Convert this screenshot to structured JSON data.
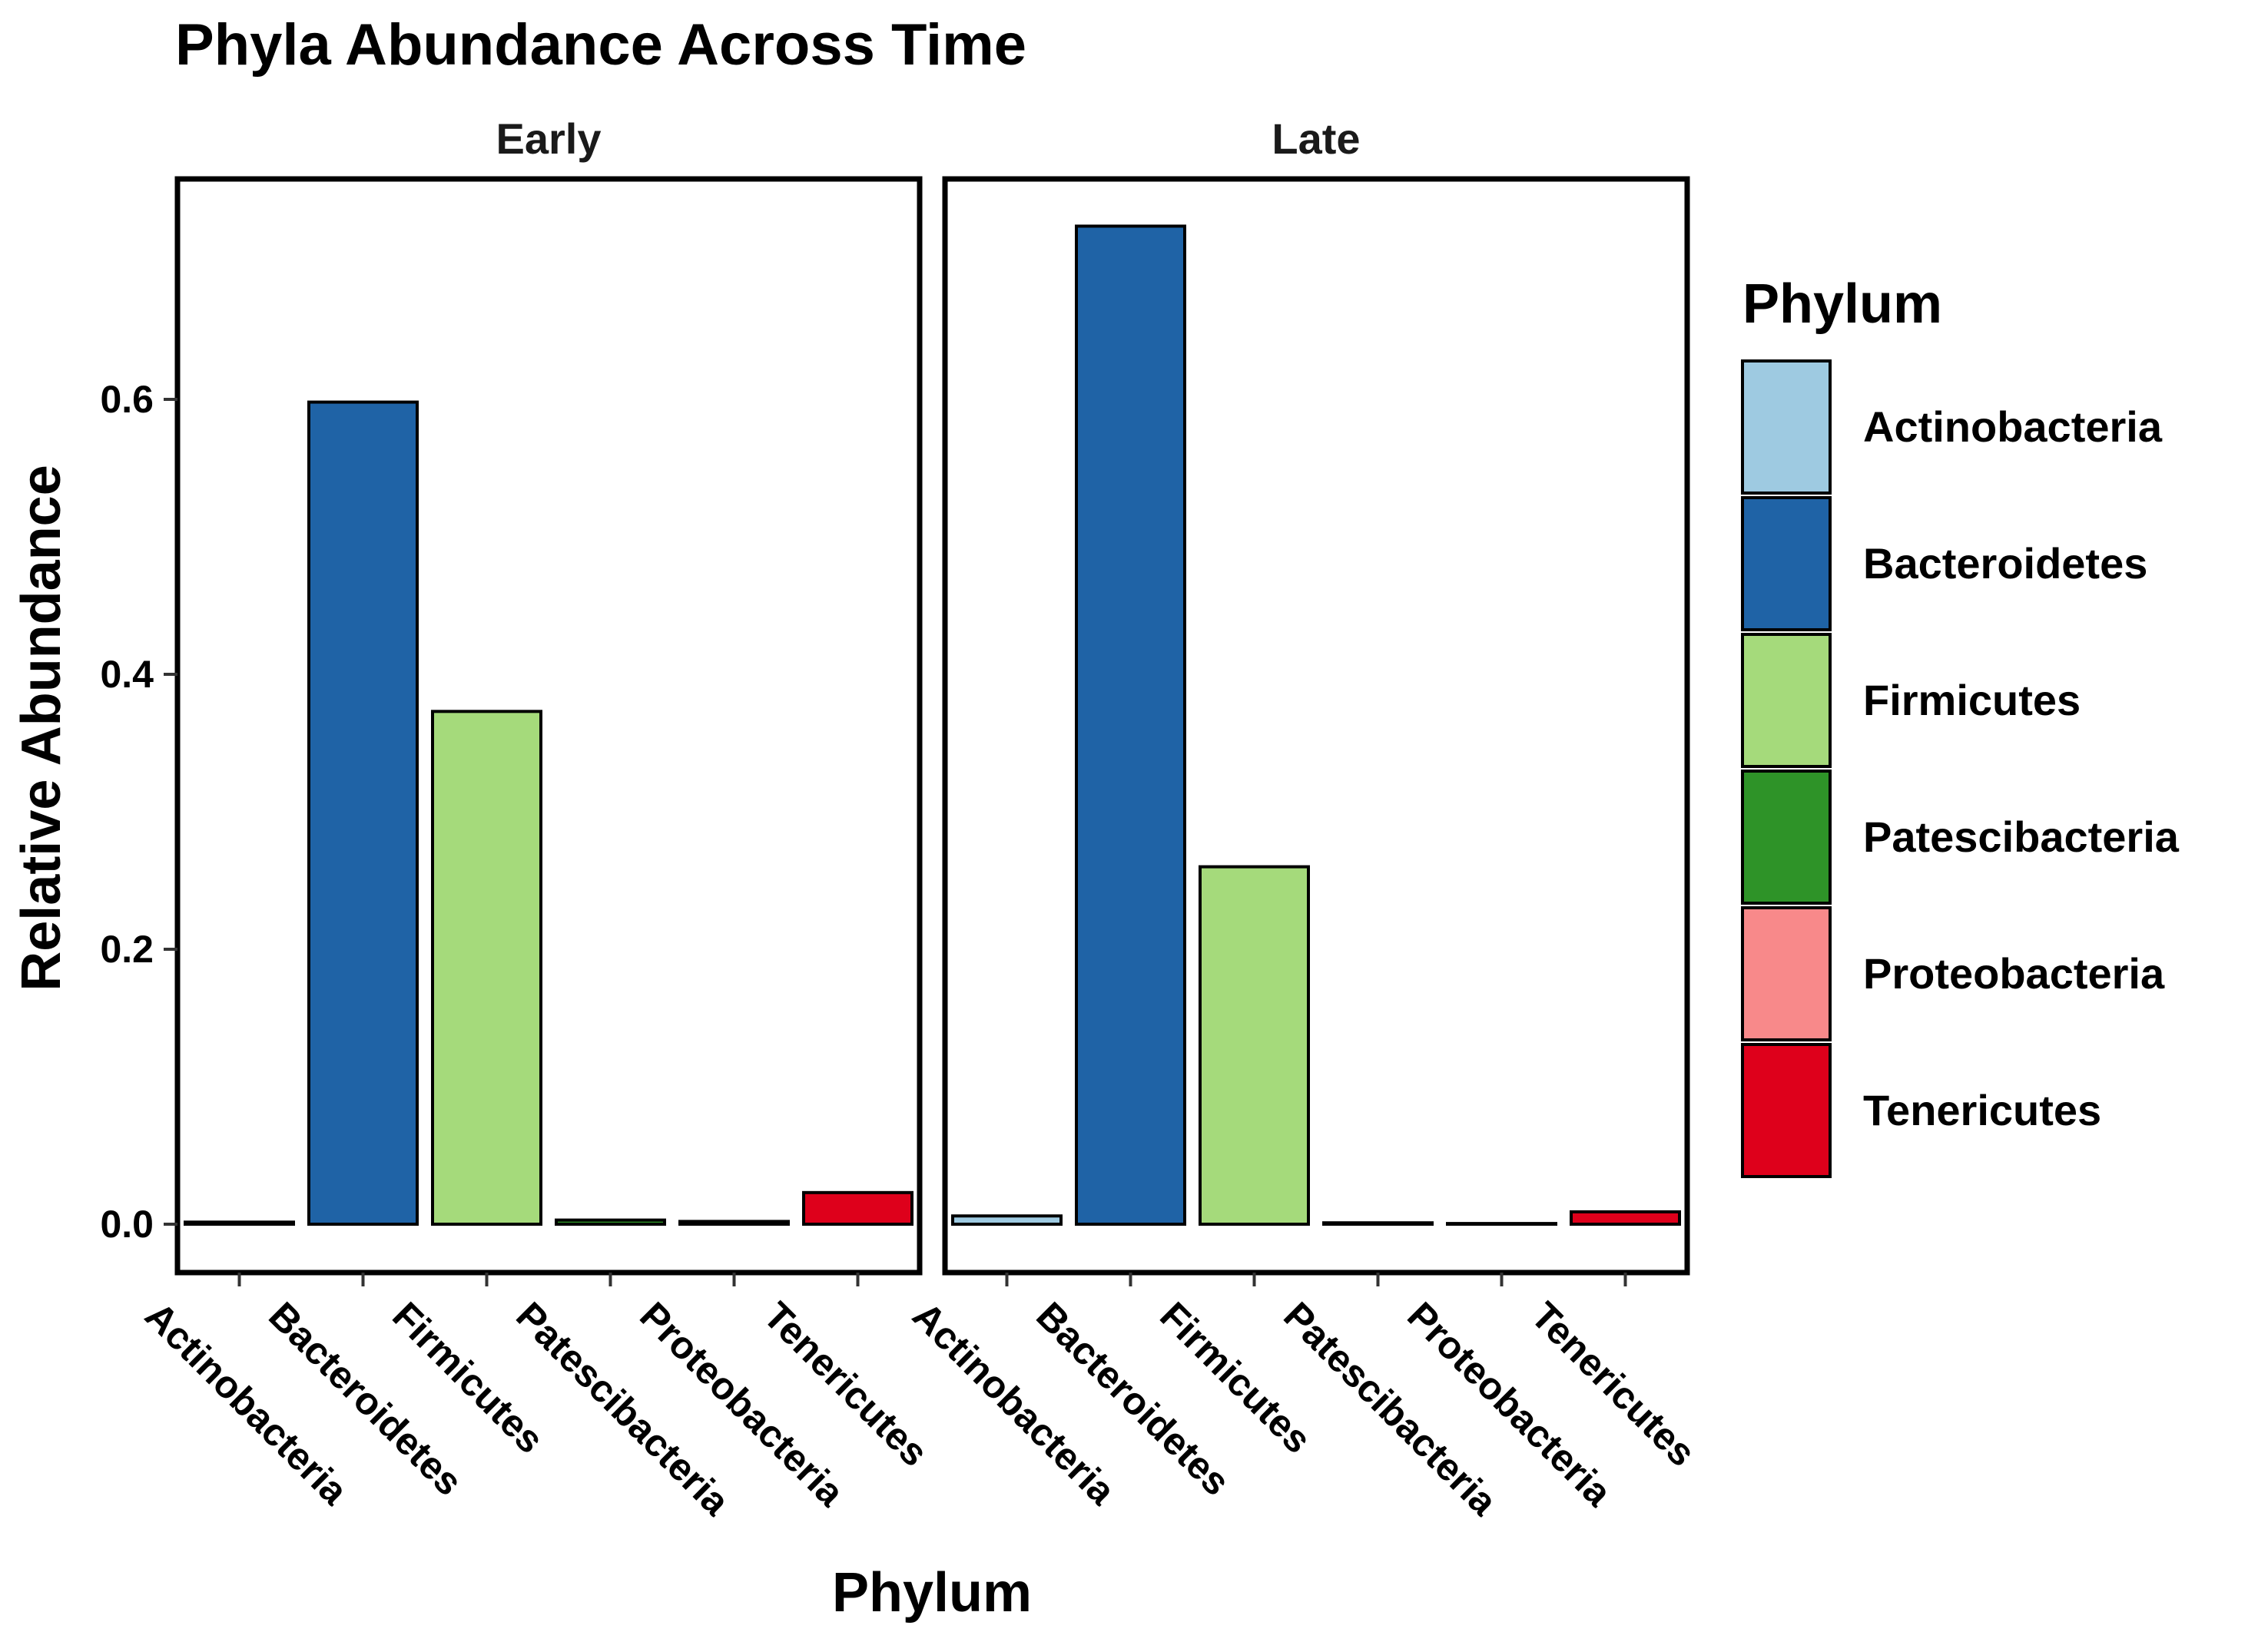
{
  "chart_data": {
    "type": "bar",
    "title": "Phyla Abundance Across Time",
    "xlabel": "Phylum",
    "ylabel": "Relative Abundance",
    "ylim": [
      -0.034,
      0.757
    ],
    "yticks": [
      0.0,
      0.2,
      0.4,
      0.6
    ],
    "ytick_labels": [
      "0.0",
      "0.2",
      "0.4",
      "0.6"
    ],
    "categories": [
      "Actinobacteria",
      "Bacteroidetes",
      "Firmicutes",
      "Patescibacteria",
      "Proteobacteria",
      "Tenericutes"
    ],
    "colors": [
      "#9ECAE1",
      "#1F63A6",
      "#A5DA7B",
      "#2E9328",
      "#F8898A",
      "#DE001B"
    ],
    "panels": [
      {
        "name": "Early",
        "values": [
          0.0015,
          0.598,
          0.373,
          0.003,
          0.002,
          0.023
        ]
      },
      {
        "name": "Late",
        "values": [
          0.006,
          0.726,
          0.26,
          0.001,
          0.0005,
          0.009
        ]
      }
    ],
    "legend": {
      "title": "Phylum",
      "placement": "right",
      "entries": [
        "Actinobacteria",
        "Bacteroidetes",
        "Firmicutes",
        "Patescibacteria",
        "Proteobacteria",
        "Tenericutes"
      ]
    },
    "grid": false
  }
}
